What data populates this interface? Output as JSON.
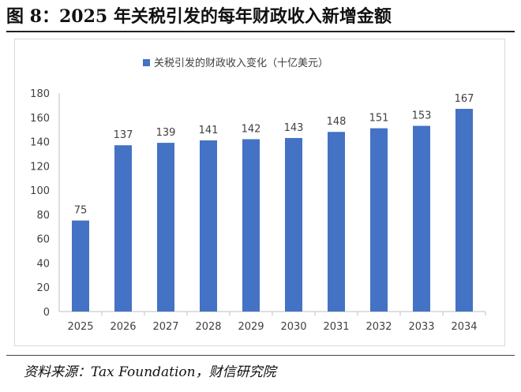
{
  "figure": {
    "title": "图 8：2025 年关税引发的每年财政收入新增金额",
    "source": "资料来源：Tax Foundation，财信研究院"
  },
  "chart_data": {
    "type": "bar",
    "categories": [
      "2025",
      "2026",
      "2027",
      "2028",
      "2029",
      "2030",
      "2031",
      "2032",
      "2033",
      "2034"
    ],
    "series": [
      {
        "name": "关税引发的财政收入变化（十亿美元）",
        "values": [
          75,
          137,
          139,
          141,
          142,
          143,
          148,
          151,
          153,
          167
        ],
        "color": "#4472C4"
      }
    ],
    "ylim": [
      0,
      180
    ],
    "yticks": [
      0,
      20,
      40,
      60,
      80,
      100,
      120,
      140,
      160,
      180
    ],
    "grid": false,
    "legend_position": "top-center",
    "data_labels": true
  }
}
